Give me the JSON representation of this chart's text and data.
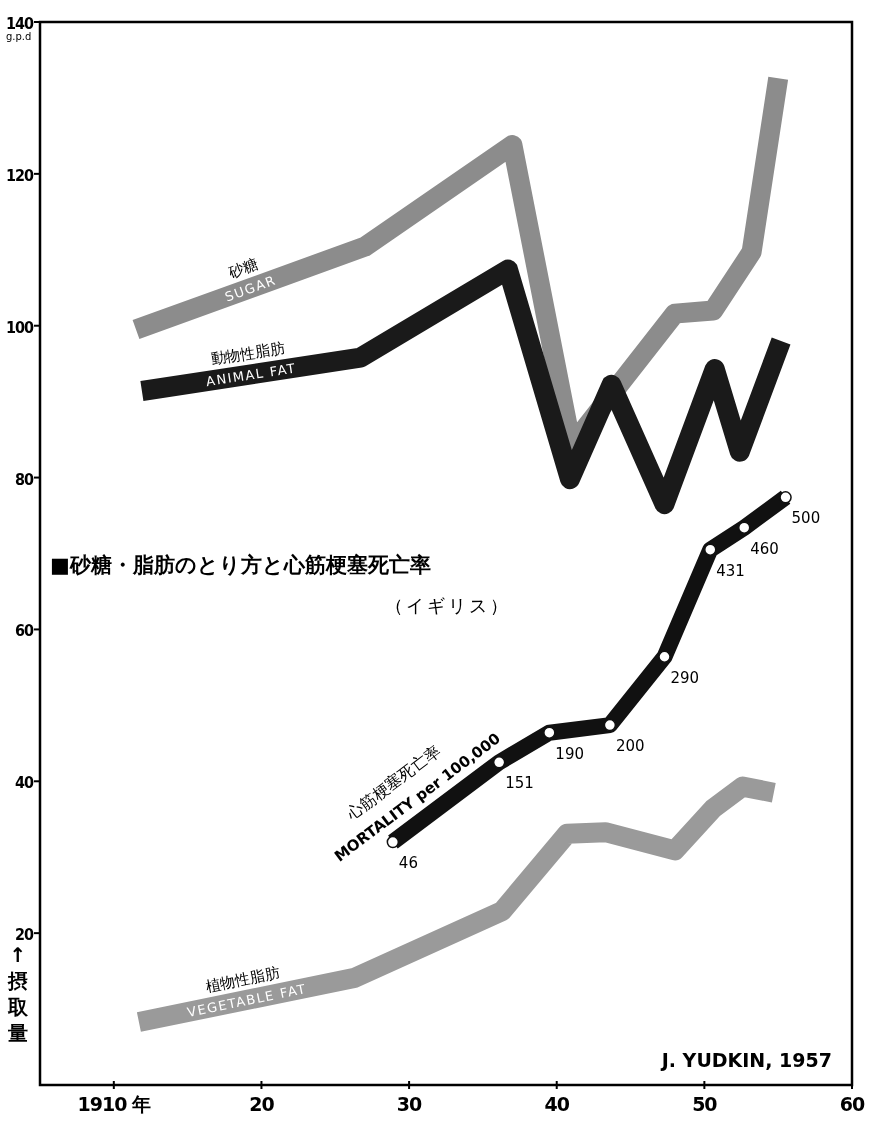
{
  "chart_data": {
    "type": "line",
    "title": "■砂糖・脂肪のとり方と心筋梗塞死亡率",
    "subtitle": "（イギリス）",
    "ylabel": "↑摂取量",
    "annotations": [
      "g.p.d",
      "J. YUDKIN, 1957"
    ],
    "xlim": [
      1905,
      1960
    ],
    "xticks": [
      {
        "value": 1910,
        "label": "1910 年"
      },
      {
        "value": 1920,
        "label": "20"
      },
      {
        "value": 1930,
        "label": "30"
      },
      {
        "value": 1940,
        "label": "40"
      },
      {
        "value": 1950,
        "label": "50"
      },
      {
        "value": 1960,
        "label": "60"
      }
    ],
    "ylim": [
      0,
      140
    ],
    "yticks": [
      20,
      40,
      60,
      80,
      100,
      120,
      140
    ],
    "y2lim": [
      -274,
      1126
    ],
    "series": [
      {
        "name": "砂糖\nSUGAR",
        "color": "#8c8c8c",
        "x": [
          1911.5,
          1927,
          1937,
          1941,
          1948,
          1950.6,
          1953.2,
          1955
        ],
        "values": [
          99.5,
          110.4,
          123.8,
          84.2,
          101.6,
          102,
          109.7,
          132.6
        ]
      },
      {
        "name": "動物性脂肪\nANIMAL  FAT",
        "color": "#1a1a1a",
        "x": [
          1911.9,
          1926.7,
          1936.7,
          1940.9,
          1943.7,
          1947.3,
          1950.7,
          1952.4,
          1955.2
        ],
        "values": [
          91.4,
          95.8,
          107.4,
          79.8,
          92.2,
          76.5,
          94.3,
          83.4,
          98
        ]
      },
      {
        "name": "植物性脂肪\nVEGETABLE  FAT",
        "color": "#9a9a9a",
        "x": [
          1911.7,
          1926.3,
          1936.3,
          1940.7,
          1943.3,
          1948,
          1950.6,
          1952.6,
          1954.7
        ],
        "values": [
          8.3,
          14.1,
          22.9,
          33.1,
          33.3,
          30.9,
          36.4,
          39.3,
          38.5
        ]
      },
      {
        "name": "心筋梗塞死亡率\nMORTALITY per 100,000",
        "color": "#111111",
        "axis": "y2",
        "marker": "circle",
        "x": [
          1928.9,
          1936.1,
          1939.5,
          1943.6,
          1947.3,
          1950.4,
          1952.7,
          1955.5
        ],
        "values": [
          46,
          151,
          190,
          200,
          290,
          431,
          460,
          500
        ],
        "value_labels": [
          "46",
          "151",
          "190",
          "200",
          "290",
          "431",
          "460",
          "500"
        ]
      }
    ]
  }
}
